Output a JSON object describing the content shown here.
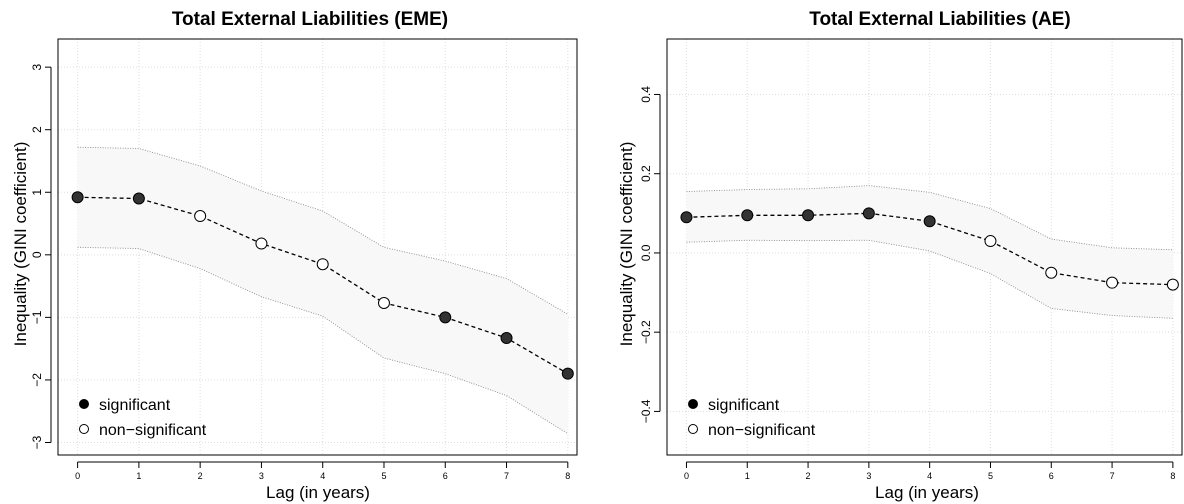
{
  "chart_data": [
    {
      "type": "line",
      "title": "Total External Liabilities (EME)",
      "xlabel": "Lag (in years)",
      "ylabel": "Inequality (GINI coefficient)",
      "x": [
        0,
        1,
        2,
        3,
        4,
        5,
        6,
        7,
        8
      ],
      "xlim": [
        -0.32,
        8.15
      ],
      "ylim": [
        -3.2,
        3.45
      ],
      "yticks": [
        -3,
        -2,
        -1,
        0,
        1,
        2,
        3
      ],
      "ytick_labels": [
        "−3",
        "−2",
        "−1",
        "0",
        "1",
        "2",
        "3"
      ],
      "grid": true,
      "series": [
        {
          "values": [
            0.92,
            0.9,
            0.62,
            0.18,
            -0.15,
            -0.77,
            -1.0,
            -1.33,
            -1.9
          ]
        }
      ],
      "significant": [
        true,
        true,
        false,
        false,
        false,
        false,
        true,
        true,
        true
      ],
      "band_upper": [
        1.72,
        1.7,
        1.42,
        1.02,
        0.7,
        0.12,
        -0.1,
        -0.38,
        -0.95
      ],
      "band_lower": [
        0.12,
        0.1,
        -0.22,
        -0.67,
        -0.98,
        -1.65,
        -1.9,
        -2.25,
        -2.86
      ],
      "legend": {
        "position": "bottom-left",
        "entries": [
          "significant",
          "non−significant"
        ]
      },
      "style": {
        "point_fill_sig": "#333333",
        "band_fill": "#f8f8f8",
        "band_edge": "#8c8c8c",
        "grid": "#dedede"
      }
    },
    {
      "type": "line",
      "title": "Total External Liabilities (AE)",
      "xlabel": "Lag (in years)",
      "ylabel": "Inequality (GINI coefficient)",
      "x": [
        0,
        1,
        2,
        3,
        4,
        5,
        6,
        7,
        8
      ],
      "xlim": [
        -0.32,
        8.15
      ],
      "ylim": [
        -0.51,
        0.54
      ],
      "yticks": [
        -0.4,
        -0.2,
        0.0,
        0.2,
        0.4
      ],
      "ytick_labels": [
        "−0.4",
        "−0.2",
        "0.0",
        "0.2",
        "0.4"
      ],
      "grid": true,
      "series": [
        {
          "values": [
            0.09,
            0.095,
            0.095,
            0.1,
            0.08,
            0.03,
            -0.05,
            -0.075,
            -0.08
          ]
        }
      ],
      "significant": [
        true,
        true,
        true,
        true,
        true,
        false,
        false,
        false,
        false
      ],
      "band_upper": [
        0.155,
        0.16,
        0.162,
        0.17,
        0.153,
        0.112,
        0.035,
        0.013,
        0.008
      ],
      "band_lower": [
        0.027,
        0.032,
        0.031,
        0.032,
        0.005,
        -0.052,
        -0.14,
        -0.158,
        -0.165
      ],
      "legend": {
        "position": "bottom-left",
        "entries": [
          "significant",
          "non−significant"
        ]
      },
      "style": {
        "point_fill_sig": "#333333",
        "band_fill": "#f8f8f8",
        "band_edge": "#8c8c8c",
        "grid": "#dedede"
      }
    }
  ]
}
